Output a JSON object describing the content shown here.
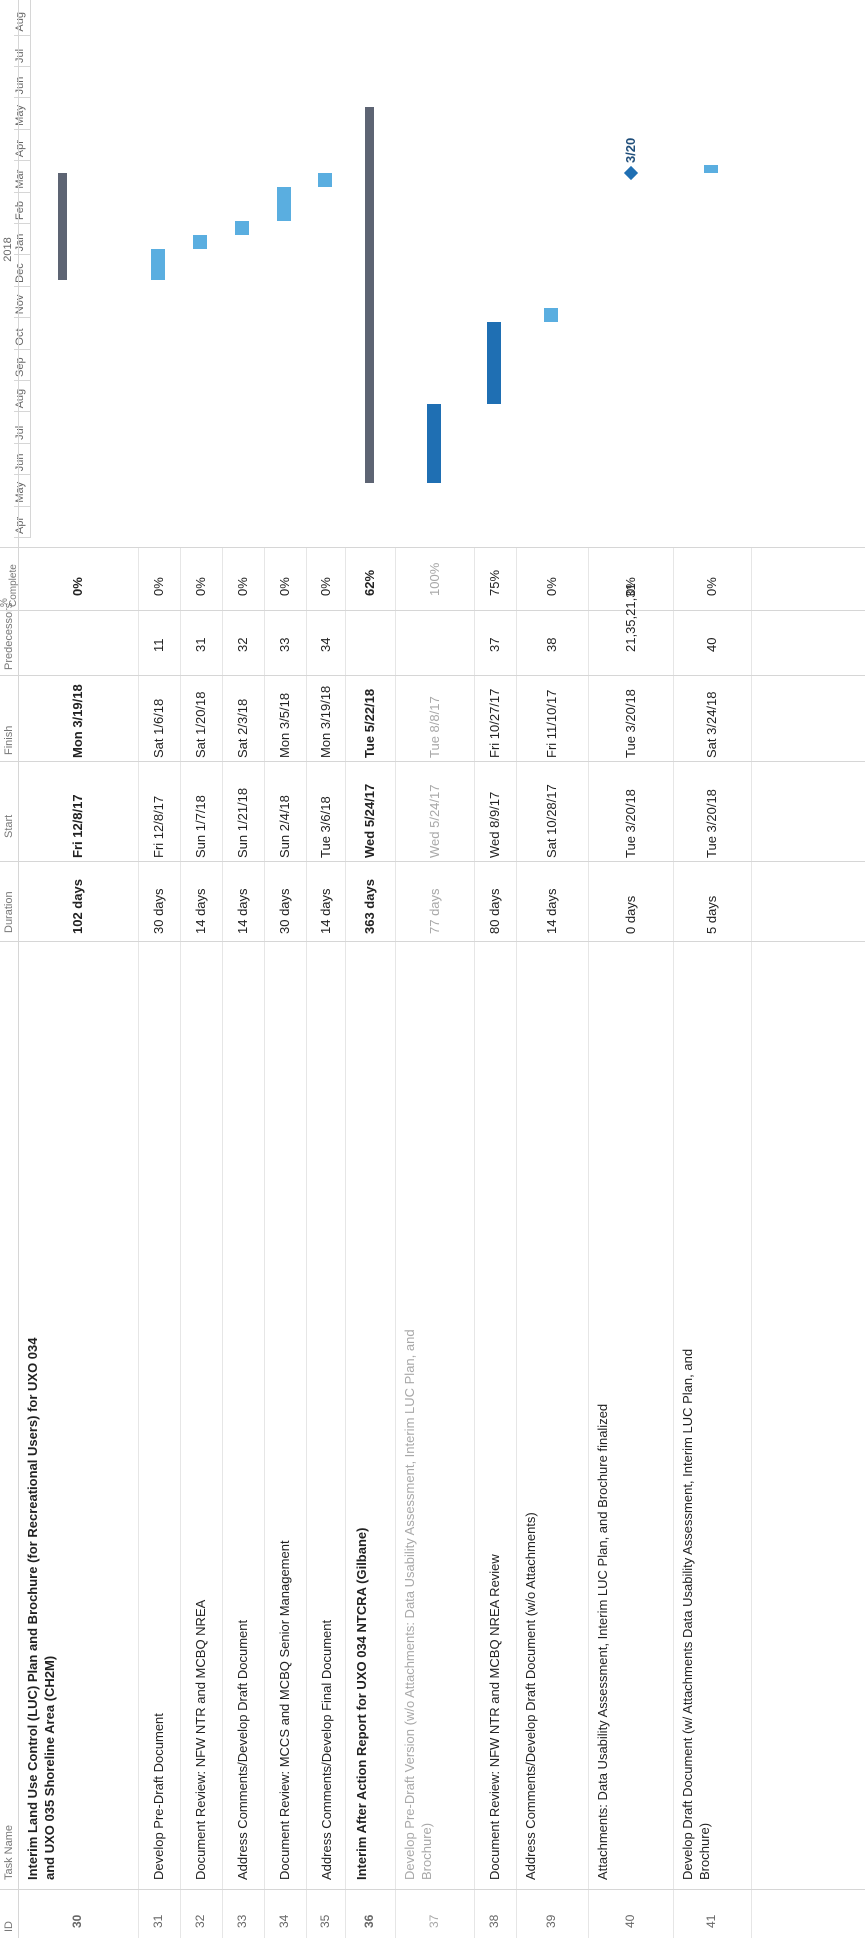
{
  "headers": {
    "id": "ID",
    "task_name": "Task Name",
    "duration": "Duration",
    "start": "Start",
    "finish": "Finish",
    "predecessors": "Predecessors",
    "percent_complete": "%\nComplete"
  },
  "timeline": {
    "year_label": "2018",
    "months": [
      "Apr",
      "May",
      "Jun",
      "Jul",
      "Aug",
      "Sep",
      "Oct",
      "Nov",
      "Dec",
      "Jan",
      "Feb",
      "Mar",
      "Apr",
      "May",
      "Jun",
      "Jul",
      "Aug"
    ]
  },
  "colors": {
    "summary_bar": "#5d6473",
    "task_bar": "#5aaee0",
    "critical_bar": "#1f6fb3",
    "milestone": "#1f6fb3"
  },
  "rows": [
    {
      "id": "30",
      "name": "Interim Land Use Control (LUC) Plan and Brochure (for Recreational Users) for UXO 034 and UXO 035 Shoreline Area (CH2M)",
      "duration": "102 days",
      "start": "Fri 12/8/17",
      "finish": "Mon 3/19/18",
      "predecessors": "",
      "complete": "0%",
      "bold": true
    },
    {
      "id": "31",
      "name": "Develop Pre-Draft Document",
      "duration": "30 days",
      "start": "Fri 12/8/17",
      "finish": "Sat 1/6/18",
      "predecessors": "11",
      "complete": "0%"
    },
    {
      "id": "32",
      "name": "Document Review: NFW NTR and MCBQ NREA",
      "duration": "14 days",
      "start": "Sun 1/7/18",
      "finish": "Sat 1/20/18",
      "predecessors": "31",
      "complete": "0%"
    },
    {
      "id": "33",
      "name": "Address Comments/Develop Draft Document",
      "duration": "14 days",
      "start": "Sun 1/21/18",
      "finish": "Sat 2/3/18",
      "predecessors": "32",
      "complete": "0%"
    },
    {
      "id": "34",
      "name": "Document Review: MCCS and MCBQ Senior Management",
      "duration": "30 days",
      "start": "Sun 2/4/18",
      "finish": "Mon 3/5/18",
      "predecessors": "33",
      "complete": "0%"
    },
    {
      "id": "35",
      "name": "Address Comments/Develop Final Document",
      "duration": "14 days",
      "start": "Tue 3/6/18",
      "finish": "Mon 3/19/18",
      "predecessors": "34",
      "complete": "0%"
    },
    {
      "id": "36",
      "name": "Interim After Action Report for UXO 034 NTCRA (Gilbane)",
      "duration": "363 days",
      "start": "Wed 5/24/17",
      "finish": "Tue 5/22/18",
      "predecessors": "",
      "complete": "62%",
      "bold": true
    },
    {
      "id": "37",
      "name": "Develop Pre-Draft Version (w/o Attachments: Data Usability Assessment, Interim LUC Plan, and Brochure)",
      "duration": "77 days",
      "start": "Wed 5/24/17",
      "finish": "Tue 8/8/17",
      "predecessors": "",
      "complete": "100%",
      "gray": true
    },
    {
      "id": "38",
      "name": "Document Review: NFW NTR and MCBQ NREA Review",
      "duration": "80 days",
      "start": "Wed 8/9/17",
      "finish": "Fri 10/27/17",
      "predecessors": "37",
      "complete": "75%"
    },
    {
      "id": "39",
      "name": "Address Comments/Develop Draft Document (w/o Attachments)",
      "duration": "14 days",
      "start": "Sat 10/28/17",
      "finish": "Fri 11/10/17",
      "predecessors": "38",
      "complete": "0%"
    },
    {
      "id": "40",
      "name": "Attachments: Data Usability Assessment, Interim LUC Plan, and Brochure finalized",
      "duration": "0 days",
      "start": "Tue 3/20/18",
      "finish": "Tue 3/20/18",
      "predecessors": "21,35,21,31",
      "complete": "0%"
    },
    {
      "id": "41",
      "name": "Develop Draft Document (w/ Attachments Data Usability Assessment, Interim LUC Plan, and Brochure)",
      "duration": "5 days",
      "start": "Tue 3/20/18",
      "finish": "Sat 3/24/18",
      "predecessors": "40",
      "complete": "0%"
    }
  ],
  "milestone_label": "3/20"
}
